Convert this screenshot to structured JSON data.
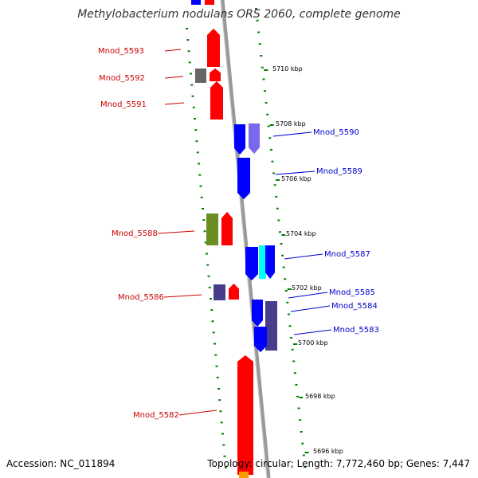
{
  "title": "Methylobacterium nodulans ORS 2060, complete genome",
  "accession": "Accession: NC_011894",
  "topology": "Topology: circular; Length: 7,772,460 bp; Genes: 7,447",
  "colors": {
    "forward_gene": "#ff0000",
    "reverse_gene": "#0000ff",
    "forward_label": "#cc0000",
    "reverse_label": "#0000cc",
    "grey_gene": "#666666",
    "olive_gene": "#6b8e23",
    "slate_gene": "#483d8b",
    "cyan_gene": "#00ffff",
    "lightslate_gene": "#7b68ee",
    "orange_gene": "#ff9900",
    "backbone": "#999999",
    "dots": "#008000"
  },
  "ticks": [
    "5710 kbp",
    "5708 kbp",
    "5706 kbp",
    "5704 kbp",
    "5702 kbp",
    "5700 kbp",
    "5698 kbp",
    "5696 kbp"
  ],
  "genes_left": [
    "Mnod_5593",
    "Mnod_5592",
    "Mnod_5591",
    "Mnod_5588",
    "Mnod_5586",
    "Mnod_5582"
  ],
  "genes_right": [
    "Mnod_5590",
    "Mnod_5589",
    "Mnod_5587",
    "Mnod_5585",
    "Mnod_5584",
    "Mnod_5583"
  ]
}
